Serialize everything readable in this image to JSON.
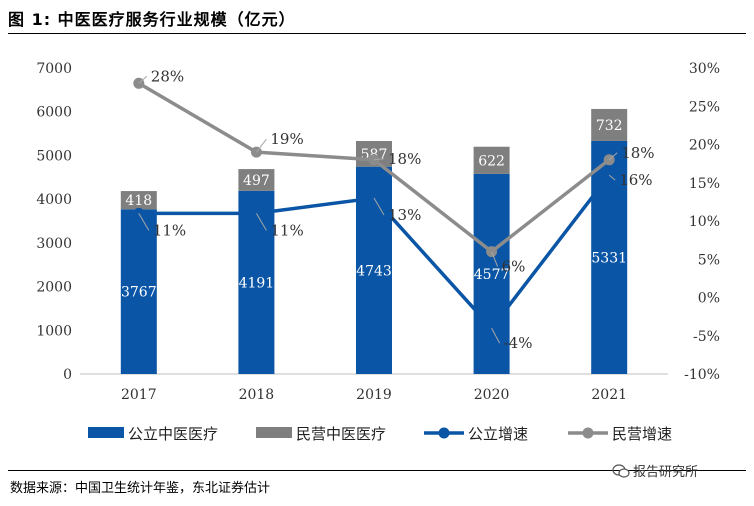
{
  "title": "图 1:  中医医疗服务行业规模（亿元）",
  "source": "数据来源：中国卫生统计年鉴，东北证券估计",
  "watermark": "报告研究所",
  "chart_data": {
    "type": "bar",
    "stacked": true,
    "categories": [
      "2017",
      "2018",
      "2019",
      "2020",
      "2021"
    ],
    "series": [
      {
        "name": "公立中医医疗",
        "type": "bar",
        "axis": "left",
        "color": "#0a55a5",
        "values": [
          3767,
          4191,
          4743,
          4577,
          5331
        ],
        "labels": [
          "3767",
          "4191",
          "4743",
          "4577",
          "5331"
        ]
      },
      {
        "name": "民营中医医疗",
        "type": "bar",
        "axis": "left",
        "color": "#7f7f7f",
        "values": [
          418,
          497,
          587,
          622,
          732
        ],
        "labels": [
          "418",
          "497",
          "587",
          "622",
          "732"
        ]
      },
      {
        "name": "公立增速",
        "type": "line",
        "axis": "right",
        "color": "#0a55a5",
        "values": [
          11,
          11,
          13,
          -4,
          16
        ],
        "labels": [
          "11%",
          "11%",
          "13%",
          "-4%",
          "16%"
        ]
      },
      {
        "name": "民营增速",
        "type": "line",
        "axis": "right",
        "color": "#8c8c8c",
        "values": [
          28,
          19,
          18,
          6,
          18
        ],
        "labels": [
          "28%",
          "19%",
          "18%",
          "6%",
          "18%"
        ]
      }
    ],
    "y_left": {
      "min": 0,
      "max": 7000,
      "step": 1000,
      "ticks": [
        "0",
        "1000",
        "2000",
        "3000",
        "4000",
        "5000",
        "6000",
        "7000"
      ]
    },
    "y_right": {
      "min": -10,
      "max": 30,
      "step": 5,
      "ticks": [
        "-10%",
        "-5%",
        "0%",
        "5%",
        "10%",
        "15%",
        "20%",
        "25%",
        "30%"
      ]
    },
    "grid": false,
    "legend": "bottom"
  }
}
